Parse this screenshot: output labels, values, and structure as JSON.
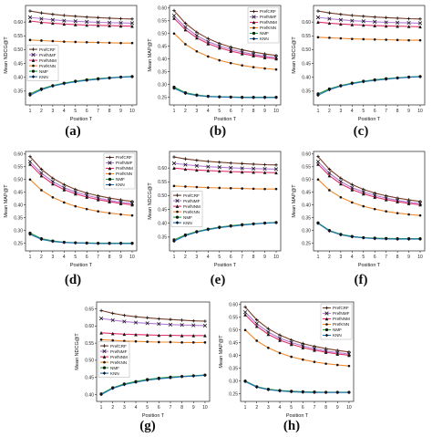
{
  "figure": {
    "series_names": [
      "PrefCRF",
      "PrefNMF",
      "PrefNNM",
      "PrefKNN",
      "NMF",
      "KNN"
    ],
    "series_colors": {
      "PrefCRF": "#7b3f2a",
      "PrefNMF": "#b47ad6",
      "PrefNNM": "#e0306a",
      "PrefKNN": "#f0882a",
      "NMF": "#28a040",
      "KNN": "#1f6fb4"
    },
    "marker_color": "#111111",
    "axis_color": "#222222"
  },
  "chart_data": [
    {
      "panel": "a",
      "caption": "(a)",
      "type": "line",
      "ylabel": "Mean NDCG@T",
      "xlabel": "Position T",
      "x": [
        1,
        2,
        3,
        4,
        5,
        6,
        7,
        8,
        9,
        10
      ],
      "xlim": [
        0.6,
        10.4
      ],
      "ylim": [
        0.3,
        0.66
      ],
      "yticks": [
        0.35,
        0.4,
        0.45,
        0.5,
        0.55,
        0.6
      ],
      "xticks": [
        1,
        2,
        3,
        4,
        5,
        6,
        7,
        8,
        9,
        10
      ],
      "legend": "middle-left",
      "series": [
        {
          "name": "PrefCRF",
          "values": [
            0.64,
            0.633,
            0.628,
            0.624,
            0.621,
            0.618,
            0.616,
            0.614,
            0.612,
            0.611
          ]
        },
        {
          "name": "PrefNMF",
          "values": [
            0.617,
            0.612,
            0.608,
            0.605,
            0.603,
            0.601,
            0.599,
            0.598,
            0.597,
            0.596
          ]
        },
        {
          "name": "PrefNNM",
          "values": [
            0.604,
            0.599,
            0.596,
            0.593,
            0.591,
            0.589,
            0.588,
            0.587,
            0.586,
            0.585
          ]
        },
        {
          "name": "PrefKNN",
          "values": [
            0.535,
            0.533,
            0.531,
            0.529,
            0.528,
            0.527,
            0.526,
            0.525,
            0.524,
            0.524
          ]
        },
        {
          "name": "NMF",
          "values": [
            0.34,
            0.358,
            0.37,
            0.379,
            0.386,
            0.391,
            0.395,
            0.398,
            0.401,
            0.403
          ]
        },
        {
          "name": "KNN",
          "values": [
            0.335,
            0.355,
            0.368,
            0.377,
            0.384,
            0.389,
            0.393,
            0.397,
            0.4,
            0.402
          ]
        }
      ]
    },
    {
      "panel": "b",
      "caption": "(b)",
      "type": "line",
      "ylabel": "Mean MAP@T",
      "xlabel": "Position T",
      "x": [
        1,
        2,
        3,
        4,
        5,
        6,
        7,
        8,
        9,
        10
      ],
      "xlim": [
        0.6,
        10.4
      ],
      "ylim": [
        0.22,
        0.61
      ],
      "yticks": [
        0.25,
        0.3,
        0.35,
        0.4,
        0.45,
        0.5,
        0.55,
        0.6
      ],
      "xticks": [
        1,
        2,
        3,
        4,
        5,
        6,
        7,
        8,
        9,
        10
      ],
      "legend": "top-right",
      "series": [
        {
          "name": "PrefCRF",
          "values": [
            0.59,
            0.54,
            0.505,
            0.48,
            0.461,
            0.447,
            0.436,
            0.427,
            0.42,
            0.414
          ]
        },
        {
          "name": "PrefNMF",
          "values": [
            0.57,
            0.525,
            0.492,
            0.468,
            0.451,
            0.438,
            0.427,
            0.418,
            0.411,
            0.406
          ]
        },
        {
          "name": "PrefNNM",
          "values": [
            0.56,
            0.515,
            0.483,
            0.46,
            0.444,
            0.431,
            0.421,
            0.413,
            0.406,
            0.401
          ]
        },
        {
          "name": "PrefKNN",
          "values": [
            0.5,
            0.458,
            0.43,
            0.41,
            0.395,
            0.384,
            0.375,
            0.368,
            0.363,
            0.359
          ]
        },
        {
          "name": "NMF",
          "values": [
            0.29,
            0.268,
            0.259,
            0.254,
            0.252,
            0.251,
            0.25,
            0.25,
            0.25,
            0.25
          ]
        },
        {
          "name": "KNN",
          "values": [
            0.285,
            0.265,
            0.257,
            0.253,
            0.251,
            0.25,
            0.249,
            0.249,
            0.249,
            0.249
          ]
        }
      ]
    },
    {
      "panel": "c",
      "caption": "(c)",
      "type": "line",
      "ylabel": "Mean NDCG@T",
      "xlabel": "Position T",
      "x": [
        1,
        2,
        3,
        4,
        5,
        6,
        7,
        8,
        9,
        10
      ],
      "xlim": [
        0.6,
        10.4
      ],
      "ylim": [
        0.3,
        0.66
      ],
      "yticks": [
        0.35,
        0.4,
        0.45,
        0.5,
        0.55,
        0.6
      ],
      "xticks": [
        1,
        2,
        3,
        4,
        5,
        6,
        7,
        8,
        9,
        10
      ],
      "legend": "none",
      "series": [
        {
          "name": "PrefCRF",
          "values": [
            0.64,
            0.633,
            0.628,
            0.624,
            0.621,
            0.618,
            0.616,
            0.614,
            0.612,
            0.611
          ]
        },
        {
          "name": "PrefNMF",
          "values": [
            0.617,
            0.612,
            0.608,
            0.605,
            0.603,
            0.601,
            0.599,
            0.598,
            0.597,
            0.596
          ]
        },
        {
          "name": "PrefNNM",
          "values": [
            0.6,
            0.596,
            0.593,
            0.591,
            0.589,
            0.587,
            0.586,
            0.585,
            0.584,
            0.583
          ]
        },
        {
          "name": "PrefKNN",
          "values": [
            0.545,
            0.543,
            0.541,
            0.539,
            0.538,
            0.537,
            0.536,
            0.535,
            0.534,
            0.534
          ]
        },
        {
          "name": "NMF",
          "values": [
            0.34,
            0.358,
            0.37,
            0.379,
            0.386,
            0.391,
            0.395,
            0.398,
            0.401,
            0.403
          ]
        },
        {
          "name": "KNN",
          "values": [
            0.335,
            0.355,
            0.368,
            0.377,
            0.384,
            0.389,
            0.393,
            0.397,
            0.4,
            0.402
          ]
        }
      ]
    },
    {
      "panel": "d",
      "caption": "(d)",
      "type": "line",
      "ylabel": "Mean MAP@T",
      "xlabel": "Position T",
      "x": [
        1,
        2,
        3,
        4,
        5,
        6,
        7,
        8,
        9,
        10
      ],
      "xlim": [
        0.6,
        10.4
      ],
      "ylim": [
        0.22,
        0.61
      ],
      "yticks": [
        0.25,
        0.3,
        0.35,
        0.4,
        0.45,
        0.5,
        0.55,
        0.6
      ],
      "xticks": [
        1,
        2,
        3,
        4,
        5,
        6,
        7,
        8,
        9,
        10
      ],
      "legend": "top-right",
      "series": [
        {
          "name": "PrefCRF",
          "values": [
            0.59,
            0.54,
            0.505,
            0.48,
            0.461,
            0.447,
            0.436,
            0.427,
            0.42,
            0.414
          ]
        },
        {
          "name": "PrefNMF",
          "values": [
            0.57,
            0.525,
            0.492,
            0.468,
            0.451,
            0.438,
            0.427,
            0.418,
            0.411,
            0.406
          ]
        },
        {
          "name": "PrefNNM",
          "values": [
            0.56,
            0.515,
            0.483,
            0.46,
            0.444,
            0.431,
            0.421,
            0.413,
            0.406,
            0.401
          ]
        },
        {
          "name": "PrefKNN",
          "values": [
            0.5,
            0.458,
            0.43,
            0.41,
            0.395,
            0.384,
            0.375,
            0.368,
            0.363,
            0.359
          ]
        },
        {
          "name": "NMF",
          "values": [
            0.29,
            0.268,
            0.259,
            0.254,
            0.252,
            0.251,
            0.25,
            0.25,
            0.25,
            0.25
          ]
        },
        {
          "name": "KNN",
          "values": [
            0.285,
            0.265,
            0.257,
            0.253,
            0.251,
            0.25,
            0.249,
            0.249,
            0.249,
            0.249
          ]
        }
      ]
    },
    {
      "panel": "e",
      "caption": "(e)",
      "type": "line",
      "ylabel": "Mean NDCG@T",
      "xlabel": "Position T",
      "x": [
        1,
        2,
        3,
        4,
        5,
        6,
        7,
        8,
        9,
        10
      ],
      "xlim": [
        0.6,
        10.4
      ],
      "ylim": [
        0.3,
        0.66
      ],
      "yticks": [
        0.35,
        0.4,
        0.45,
        0.5,
        0.55,
        0.6
      ],
      "xticks": [
        1,
        2,
        3,
        4,
        5,
        6,
        7,
        8,
        9,
        10
      ],
      "legend": "middle-left",
      "series": [
        {
          "name": "PrefCRF",
          "values": [
            0.64,
            0.633,
            0.628,
            0.624,
            0.621,
            0.618,
            0.616,
            0.614,
            0.612,
            0.611
          ]
        },
        {
          "name": "PrefNMF",
          "values": [
            0.617,
            0.612,
            0.608,
            0.605,
            0.603,
            0.601,
            0.599,
            0.598,
            0.597,
            0.596
          ]
        },
        {
          "name": "PrefNNM",
          "values": [
            0.6,
            0.596,
            0.593,
            0.591,
            0.589,
            0.587,
            0.586,
            0.585,
            0.584,
            0.583
          ]
        },
        {
          "name": "PrefKNN",
          "values": [
            0.535,
            0.533,
            0.531,
            0.529,
            0.528,
            0.527,
            0.526,
            0.525,
            0.524,
            0.524
          ]
        },
        {
          "name": "NMF",
          "values": [
            0.34,
            0.358,
            0.37,
            0.379,
            0.386,
            0.391,
            0.395,
            0.398,
            0.401,
            0.403
          ]
        },
        {
          "name": "KNN",
          "values": [
            0.335,
            0.355,
            0.368,
            0.377,
            0.384,
            0.389,
            0.393,
            0.397,
            0.4,
            0.402
          ]
        }
      ]
    },
    {
      "panel": "f",
      "caption": "(f)",
      "type": "line",
      "ylabel": "Mean MAP@T",
      "xlabel": "Position T",
      "x": [
        1,
        2,
        3,
        4,
        5,
        6,
        7,
        8,
        9,
        10
      ],
      "xlim": [
        0.6,
        10.4
      ],
      "ylim": [
        0.22,
        0.61
      ],
      "yticks": [
        0.25,
        0.3,
        0.35,
        0.4,
        0.45,
        0.5,
        0.55,
        0.6
      ],
      "xticks": [
        1,
        2,
        3,
        4,
        5,
        6,
        7,
        8,
        9,
        10
      ],
      "legend": "none",
      "series": [
        {
          "name": "PrefCRF",
          "values": [
            0.59,
            0.54,
            0.505,
            0.48,
            0.461,
            0.447,
            0.436,
            0.427,
            0.42,
            0.414
          ]
        },
        {
          "name": "PrefNMF",
          "values": [
            0.57,
            0.525,
            0.492,
            0.468,
            0.451,
            0.438,
            0.427,
            0.418,
            0.411,
            0.406
          ]
        },
        {
          "name": "PrefNNM",
          "values": [
            0.56,
            0.515,
            0.483,
            0.46,
            0.444,
            0.431,
            0.421,
            0.413,
            0.406,
            0.401
          ]
        },
        {
          "name": "PrefKNN",
          "values": [
            0.5,
            0.458,
            0.43,
            0.41,
            0.395,
            0.384,
            0.375,
            0.368,
            0.363,
            0.359
          ]
        },
        {
          "name": "NMF",
          "values": [
            0.33,
            0.3,
            0.285,
            0.277,
            0.272,
            0.27,
            0.269,
            0.268,
            0.268,
            0.268
          ]
        },
        {
          "name": "KNN",
          "values": [
            0.328,
            0.298,
            0.283,
            0.275,
            0.271,
            0.268,
            0.267,
            0.266,
            0.266,
            0.266
          ]
        }
      ]
    },
    {
      "panel": "g",
      "caption": "(g)",
      "type": "line",
      "ylabel": "Mean NDCG@T",
      "xlabel": "Position T",
      "x": [
        1,
        2,
        3,
        4,
        5,
        6,
        7,
        8,
        9,
        10
      ],
      "xlim": [
        0.6,
        10.4
      ],
      "ylim": [
        0.38,
        0.67
      ],
      "yticks": [
        0.4,
        0.45,
        0.5,
        0.55,
        0.6,
        0.65
      ],
      "xticks": [
        1,
        2,
        3,
        4,
        5,
        6,
        7,
        8,
        9,
        10
      ],
      "legend": "middle-left",
      "series": [
        {
          "name": "PrefCRF",
          "values": [
            0.645,
            0.637,
            0.631,
            0.627,
            0.624,
            0.621,
            0.619,
            0.617,
            0.615,
            0.614
          ]
        },
        {
          "name": "PrefNMF",
          "values": [
            0.622,
            0.617,
            0.613,
            0.61,
            0.608,
            0.606,
            0.604,
            0.603,
            0.602,
            0.601
          ]
        },
        {
          "name": "PrefNNM",
          "values": [
            0.58,
            0.578,
            0.576,
            0.575,
            0.574,
            0.573,
            0.573,
            0.572,
            0.572,
            0.572
          ]
        },
        {
          "name": "PrefKNN",
          "values": [
            0.56,
            0.558,
            0.556,
            0.555,
            0.554,
            0.553,
            0.553,
            0.552,
            0.552,
            0.552
          ]
        },
        {
          "name": "NMF",
          "values": [
            0.402,
            0.42,
            0.431,
            0.438,
            0.444,
            0.448,
            0.451,
            0.453,
            0.455,
            0.457
          ]
        },
        {
          "name": "KNN",
          "values": [
            0.4,
            0.418,
            0.429,
            0.436,
            0.442,
            0.446,
            0.449,
            0.452,
            0.454,
            0.456
          ]
        }
      ]
    },
    {
      "panel": "h",
      "caption": "(h)",
      "type": "line",
      "ylabel": "Mean MAP@T",
      "xlabel": "Position T",
      "x": [
        1,
        2,
        3,
        4,
        5,
        6,
        7,
        8,
        9,
        10
      ],
      "xlim": [
        0.6,
        10.4
      ],
      "ylim": [
        0.22,
        0.61
      ],
      "yticks": [
        0.25,
        0.3,
        0.35,
        0.4,
        0.45,
        0.5,
        0.55,
        0.6
      ],
      "xticks": [
        1,
        2,
        3,
        4,
        5,
        6,
        7,
        8,
        9,
        10
      ],
      "legend": "top-right",
      "series": [
        {
          "name": "PrefCRF",
          "values": [
            0.59,
            0.54,
            0.505,
            0.48,
            0.461,
            0.447,
            0.436,
            0.427,
            0.42,
            0.414
          ]
        },
        {
          "name": "PrefNMF",
          "values": [
            0.57,
            0.525,
            0.492,
            0.468,
            0.451,
            0.438,
            0.427,
            0.418,
            0.411,
            0.406
          ]
        },
        {
          "name": "PrefNNM",
          "values": [
            0.56,
            0.515,
            0.483,
            0.46,
            0.444,
            0.431,
            0.421,
            0.413,
            0.406,
            0.401
          ]
        },
        {
          "name": "PrefKNN",
          "values": [
            0.5,
            0.458,
            0.43,
            0.41,
            0.395,
            0.384,
            0.375,
            0.368,
            0.363,
            0.359
          ]
        },
        {
          "name": "NMF",
          "values": [
            0.3,
            0.278,
            0.268,
            0.263,
            0.26,
            0.258,
            0.257,
            0.256,
            0.256,
            0.256
          ]
        },
        {
          "name": "KNN",
          "values": [
            0.298,
            0.276,
            0.266,
            0.261,
            0.258,
            0.256,
            0.255,
            0.255,
            0.255,
            0.255
          ]
        }
      ]
    }
  ]
}
